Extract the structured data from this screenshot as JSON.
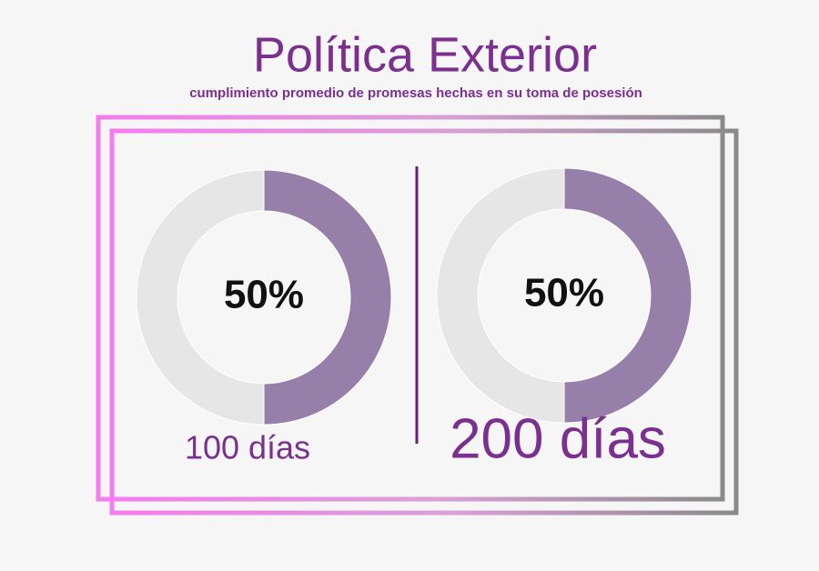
{
  "title": "Política Exterior",
  "subtitle": "cumplimiento promedio de promesas hechas en su toma de posesión",
  "chart_data": [
    {
      "type": "donut",
      "label": "100 días",
      "values": [
        50,
        50
      ],
      "value_labels": [
        "50%",
        null
      ],
      "colors": [
        "#967fa8",
        "#e6e6e6"
      ]
    },
    {
      "type": "donut",
      "label": "200 días",
      "values": [
        50,
        50
      ],
      "value_labels": [
        "50%",
        null
      ],
      "colors": [
        "#967fa8",
        "#e6e6e6"
      ]
    }
  ]
}
